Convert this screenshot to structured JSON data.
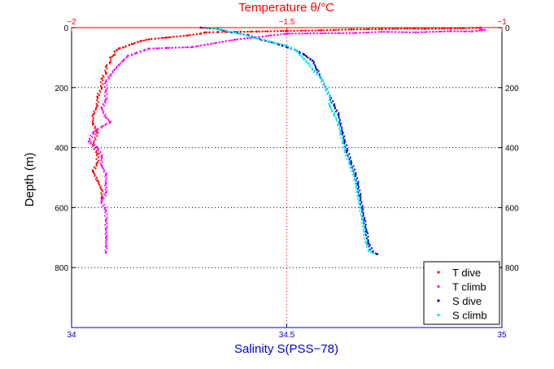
{
  "chart_data": {
    "type": "scatter",
    "title": "Temperature θ/°C",
    "ylabel": "Depth (m)",
    "xlabel": "Salinity S(PSS−78)",
    "top_axis": {
      "label": "Temperature θ/°C",
      "range": [
        -2,
        -1
      ],
      "ticks": [
        -2,
        -1.5,
        -1
      ],
      "tick_labels": [
        "−2",
        "−1.5",
        "−1"
      ],
      "color": "#ff0000"
    },
    "bottom_axis": {
      "label": "Salinity S(PSS−78)",
      "range": [
        34,
        35
      ],
      "ticks": [
        34,
        34.5,
        35
      ],
      "tick_labels": [
        "34",
        "34.5",
        "35"
      ],
      "color": "#0000cc"
    },
    "y_axis": {
      "range": [
        0,
        1000
      ],
      "reversed": true,
      "ticks": [
        0,
        200,
        400,
        600,
        800
      ],
      "tick_labels": [
        "0",
        "200",
        "400",
        "600",
        "800"
      ]
    },
    "grid": "dotted",
    "legend_position": "bottom-right",
    "series": [
      {
        "name": "T dive",
        "axis": "top",
        "color": "#ff0000",
        "points": [
          [
            -1.05,
            0
          ],
          [
            -1.09,
            2
          ],
          [
            -1.12,
            3
          ],
          [
            -1.18,
            4
          ],
          [
            -1.22,
            3
          ],
          [
            -1.28,
            5
          ],
          [
            -1.35,
            6
          ],
          [
            -1.42,
            9
          ],
          [
            -1.5,
            11
          ],
          [
            -1.57,
            13
          ],
          [
            -1.62,
            14
          ],
          [
            -1.66,
            15
          ],
          [
            -1.69,
            16
          ],
          [
            -1.7,
            20
          ],
          [
            -1.73,
            26
          ],
          [
            -1.78,
            33
          ],
          [
            -1.82,
            39
          ],
          [
            -1.84,
            45
          ],
          [
            -1.86,
            55
          ],
          [
            -1.88,
            66
          ],
          [
            -1.89,
            70
          ],
          [
            -1.9,
            80
          ],
          [
            -1.9,
            90
          ],
          [
            -1.91,
            100
          ],
          [
            -1.91,
            115
          ],
          [
            -1.92,
            130
          ],
          [
            -1.92,
            150
          ],
          [
            -1.93,
            170
          ],
          [
            -1.93,
            200
          ],
          [
            -1.94,
            230
          ],
          [
            -1.94,
            260
          ],
          [
            -1.95,
            290
          ],
          [
            -1.95,
            320
          ],
          [
            -1.94,
            350
          ],
          [
            -1.95,
            390
          ],
          [
            -1.94,
            420
          ],
          [
            -1.94,
            450
          ],
          [
            -1.95,
            480
          ],
          [
            -1.94,
            510
          ],
          [
            -1.93,
            540
          ],
          [
            -1.93,
            570
          ]
        ]
      },
      {
        "name": "T climb",
        "axis": "top",
        "color": "#ff00ff",
        "points": [
          [
            -1.05,
            5
          ],
          [
            -1.04,
            8
          ],
          [
            -1.07,
            13
          ],
          [
            -1.12,
            12
          ],
          [
            -1.2,
            16
          ],
          [
            -1.28,
            14
          ],
          [
            -1.34,
            18
          ],
          [
            -1.5,
            20
          ],
          [
            -1.62,
            40
          ],
          [
            -1.72,
            65
          ],
          [
            -1.78,
            68
          ],
          [
            -1.82,
            70
          ],
          [
            -1.83,
            75
          ],
          [
            -1.85,
            85
          ],
          [
            -1.87,
            95
          ],
          [
            -1.88,
            110
          ],
          [
            -1.89,
            125
          ],
          [
            -1.9,
            140
          ],
          [
            -1.91,
            160
          ],
          [
            -1.92,
            180
          ],
          [
            -1.92,
            210
          ],
          [
            -1.92,
            240
          ],
          [
            -1.93,
            270
          ],
          [
            -1.92,
            300
          ],
          [
            -1.91,
            315
          ],
          [
            -1.93,
            330
          ],
          [
            -1.95,
            350
          ],
          [
            -1.96,
            380
          ],
          [
            -1.94,
            400
          ],
          [
            -1.93,
            430
          ],
          [
            -1.93,
            460
          ],
          [
            -1.92,
            490
          ],
          [
            -1.92,
            520
          ],
          [
            -1.92,
            550
          ],
          [
            -1.93,
            580
          ],
          [
            -1.92,
            610
          ],
          [
            -1.92,
            640
          ],
          [
            -1.92,
            670
          ],
          [
            -1.92,
            700
          ],
          [
            -1.92,
            730
          ],
          [
            -1.92,
            750
          ]
        ]
      },
      {
        "name": "S dive",
        "axis": "bottom",
        "color": "#0000cc",
        "points": [
          [
            34.3,
            0
          ],
          [
            34.34,
            5
          ],
          [
            34.37,
            15
          ],
          [
            34.41,
            25
          ],
          [
            34.44,
            40
          ],
          [
            34.48,
            55
          ],
          [
            34.5,
            65
          ],
          [
            34.52,
            75
          ],
          [
            34.54,
            90
          ],
          [
            34.56,
            110
          ],
          [
            34.57,
            140
          ],
          [
            34.58,
            170
          ],
          [
            34.59,
            200
          ],
          [
            34.6,
            230
          ],
          [
            34.61,
            260
          ],
          [
            34.62,
            290
          ],
          [
            34.625,
            320
          ],
          [
            34.63,
            350
          ],
          [
            34.635,
            380
          ],
          [
            34.64,
            410
          ],
          [
            34.65,
            450
          ],
          [
            34.66,
            490
          ],
          [
            34.665,
            520
          ],
          [
            34.67,
            560
          ],
          [
            34.675,
            600
          ],
          [
            34.68,
            640
          ],
          [
            34.685,
            680
          ],
          [
            34.69,
            720
          ],
          [
            34.7,
            750
          ],
          [
            34.71,
            755
          ]
        ]
      },
      {
        "name": "S climb",
        "axis": "bottom",
        "color": "#00e5ee",
        "points": [
          [
            34.31,
            0
          ],
          [
            34.33,
            3
          ],
          [
            34.36,
            10
          ],
          [
            34.39,
            20
          ],
          [
            34.43,
            35
          ],
          [
            34.47,
            50
          ],
          [
            34.5,
            60
          ],
          [
            34.52,
            75
          ],
          [
            34.53,
            90
          ],
          [
            34.54,
            105
          ],
          [
            34.55,
            120
          ],
          [
            34.56,
            140
          ],
          [
            34.58,
            170
          ],
          [
            34.59,
            200
          ],
          [
            34.6,
            230
          ],
          [
            34.6,
            260
          ],
          [
            34.61,
            290
          ],
          [
            34.62,
            320
          ],
          [
            34.625,
            350
          ],
          [
            34.63,
            380
          ],
          [
            34.635,
            410
          ],
          [
            34.645,
            450
          ],
          [
            34.655,
            490
          ],
          [
            34.66,
            520
          ],
          [
            34.665,
            560
          ],
          [
            34.67,
            600
          ],
          [
            34.675,
            640
          ],
          [
            34.68,
            680
          ],
          [
            34.685,
            720
          ],
          [
            34.69,
            745
          ],
          [
            34.7,
            752
          ]
        ]
      }
    ]
  }
}
